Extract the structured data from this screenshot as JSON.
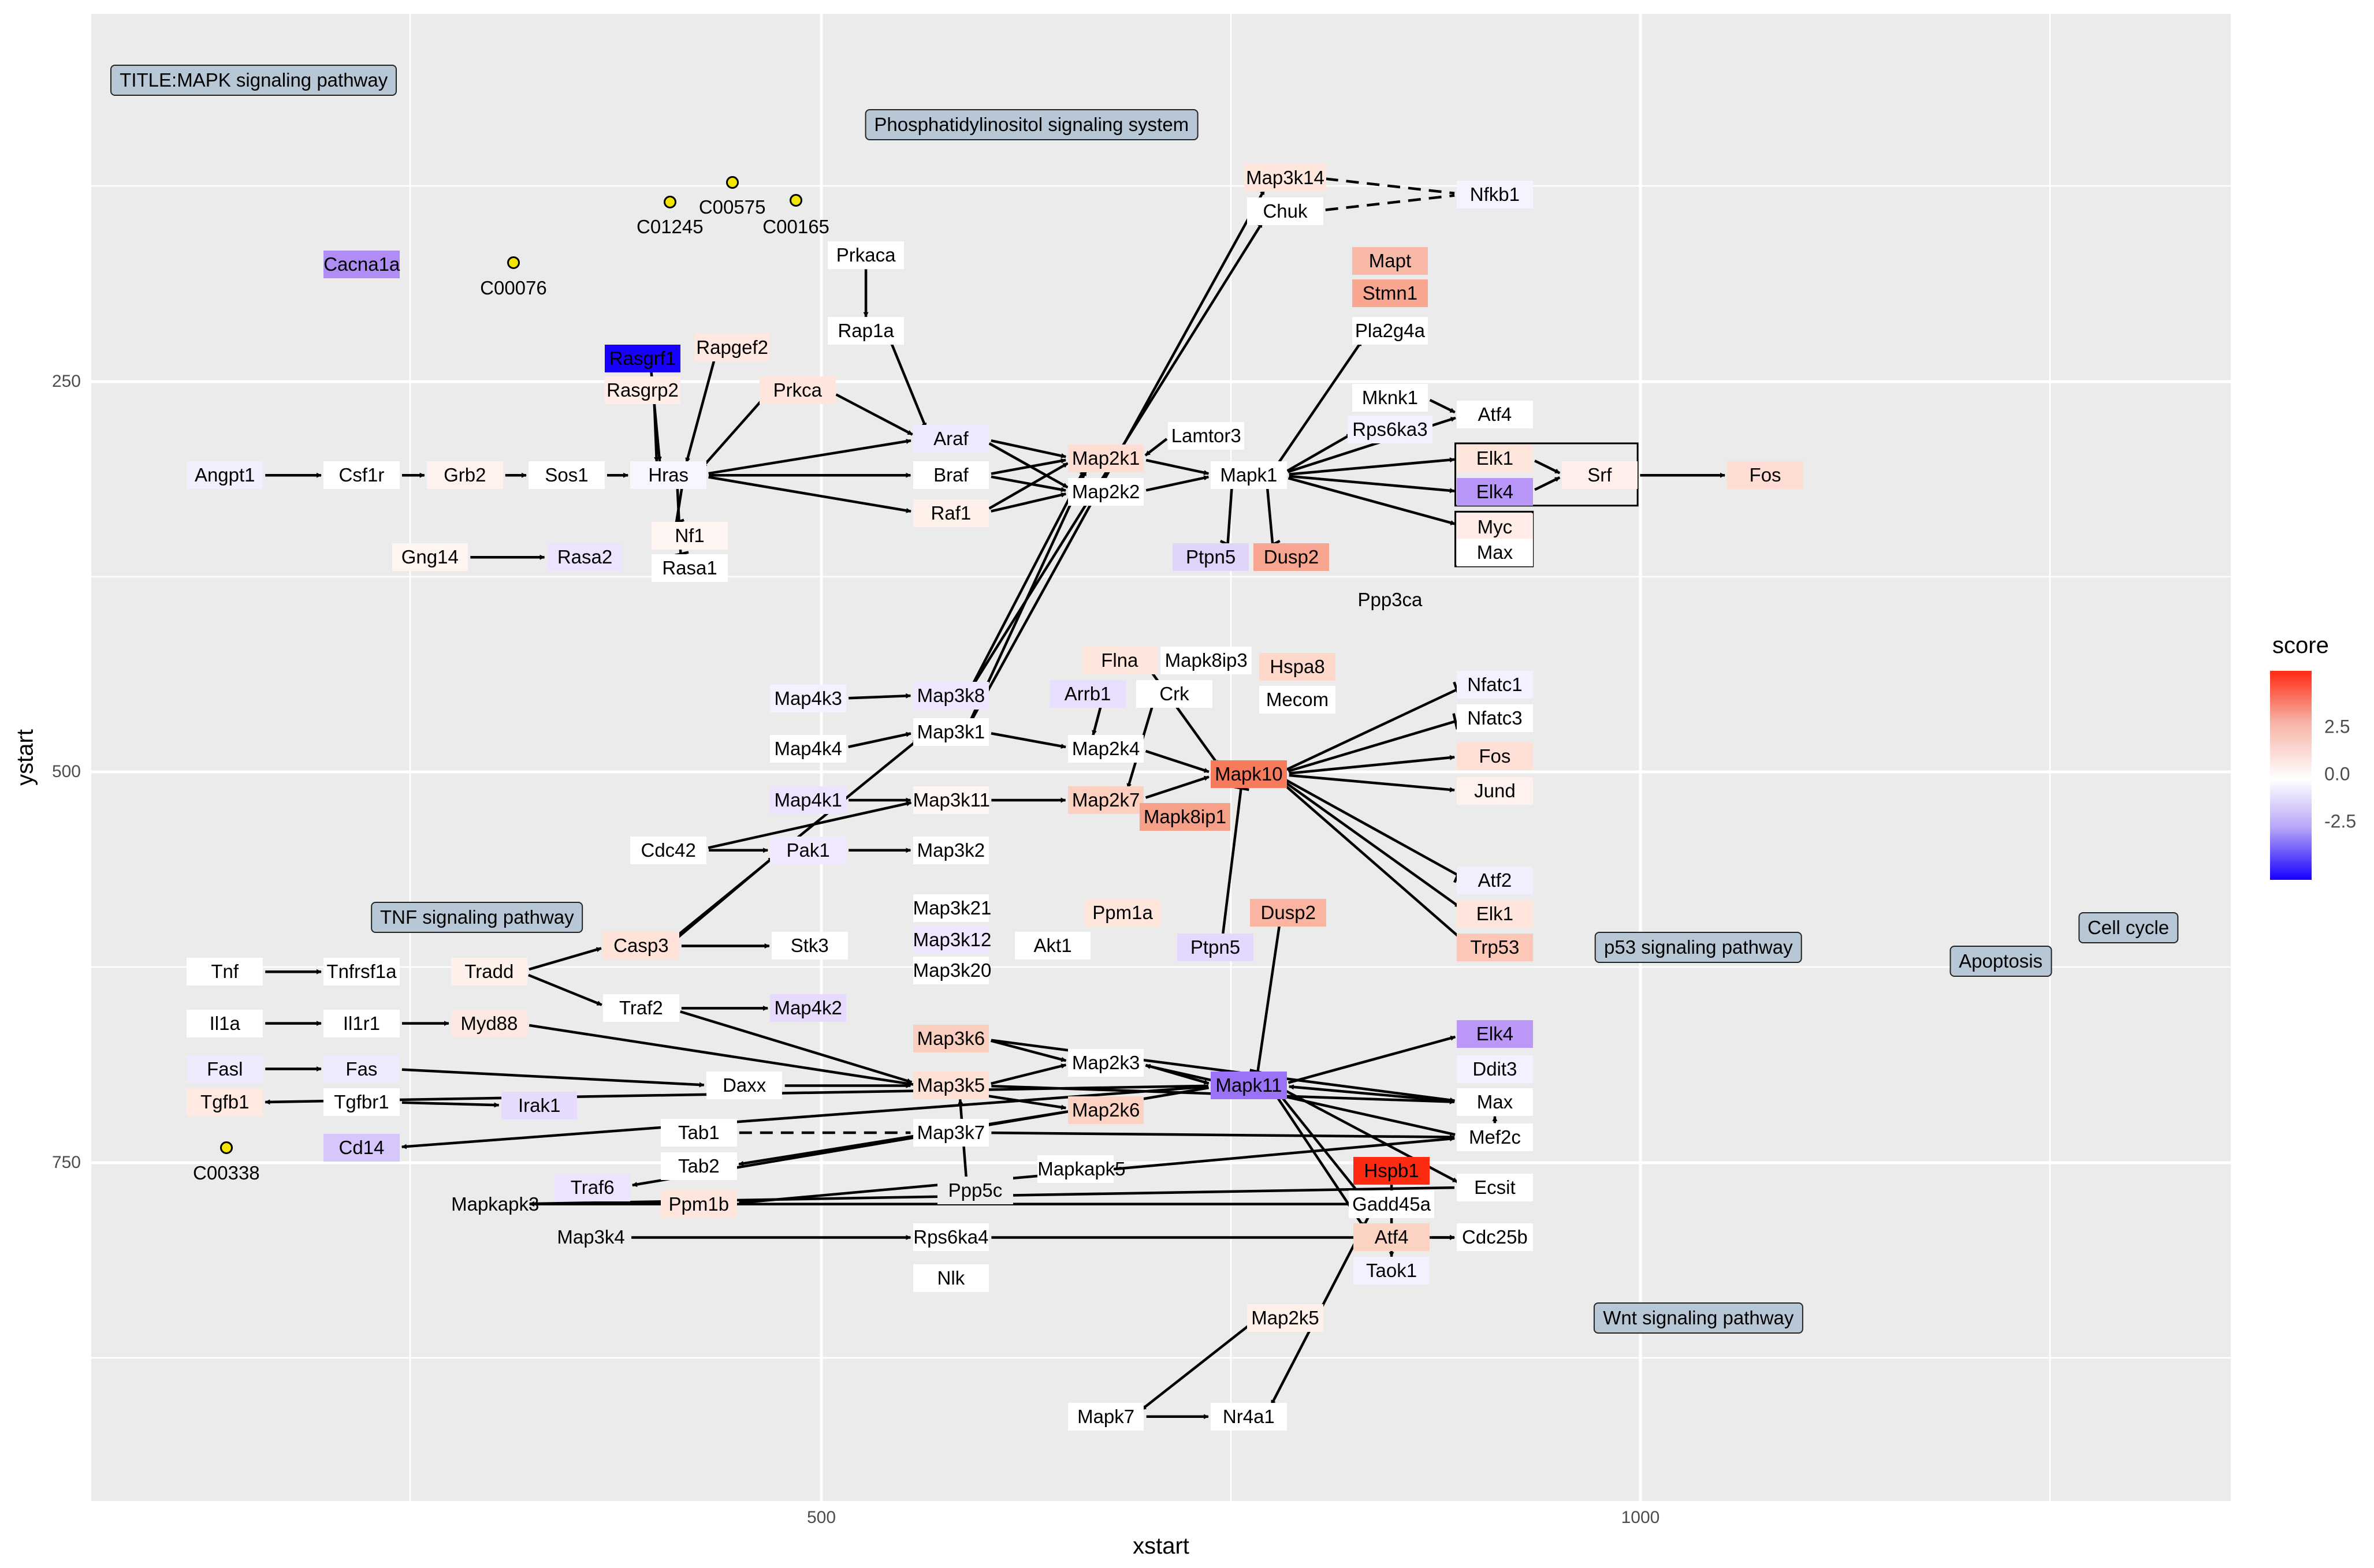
{
  "plot": {
    "xlabel": "xstart",
    "ylabel": "ystart",
    "x_ticks": [
      "500",
      "1000"
    ],
    "y_ticks": [
      "250",
      "500",
      "750"
    ]
  },
  "legend": {
    "title": "score",
    "ticks": [
      "2.5",
      "0.0",
      "-2.5"
    ]
  },
  "map_labels": [
    "TITLE:MAPK signaling pathway",
    "Phosphatidylinositol signaling system",
    "TNF signaling pathway",
    "p53 signaling pathway",
    "Apoptosis",
    "Cell cycle",
    "Wnt signaling pathway"
  ],
  "compounds": [
    "C00575",
    "C01245",
    "C00165",
    "C00076",
    "C00338"
  ],
  "genes": [
    "Angpt1",
    "Csf1r",
    "Grb2",
    "Sos1",
    "Hras",
    "Nf1",
    "Rasa1",
    "Gng14",
    "Rasa2",
    "Rasgrf1",
    "Rasgrp2",
    "Rapgef2",
    "Prkca",
    "Prkaca",
    "Rap1a",
    "Cacna1a",
    "Araf",
    "Braf",
    "Raf1",
    "Map2k1",
    "Map2k2",
    "Lamtor3",
    "Mapk1",
    "Ptpn5",
    "Dusp2",
    "Map3k14",
    "Chuk",
    "Nfkb1",
    "Mapt",
    "Stmn1",
    "Pla2g4a",
    "Mknk1",
    "Rps6ka3",
    "Atf4",
    "Elk1",
    "Elk4",
    "Srf",
    "Fos",
    "Myc",
    "Max",
    "Ppp3ca",
    "Flna",
    "Mapk8ip3",
    "Hspa8",
    "Arrb1",
    "Crk",
    "Mecom",
    "Map4k3",
    "Map3k8",
    "Map3k1",
    "Map4k4",
    "Map2k4",
    "Mapk10",
    "Map4k1",
    "Map3k11",
    "Map2k7",
    "Mapk8ip1",
    "Cdc42",
    "Pak1",
    "Map3k2",
    "Nfatc1",
    "Nfatc3",
    "Fos",
    "Jund",
    "Map3k21",
    "Map3k12",
    "Map3k20",
    "Akt1",
    "Ppm1a",
    "Dusp2",
    "Ptpn5",
    "Atf2",
    "Elk1",
    "Trp53",
    "Casp3",
    "Stk3",
    "Tnf",
    "Tnfrsf1a",
    "Tradd",
    "Traf2",
    "Map4k2",
    "Il1a",
    "Il1r1",
    "Myd88",
    "Map3k6",
    "Map2k3",
    "Mapk11",
    "Elk4",
    "Fasl",
    "Fas",
    "Daxx",
    "Map3k5",
    "Ddit3",
    "Tgfb1",
    "Tgfbr1",
    "Irak1",
    "Map2k6",
    "Max",
    "Cd14",
    "Tab1",
    "Map3k7",
    "Mef2c",
    "Traf6",
    "Tab2",
    "Ppm1b",
    "Ppp5c",
    "Mapkapk5",
    "Hspb1",
    "Ecsit",
    "Mapkapk3",
    "Gadd45a",
    "Map3k4",
    "Rps6ka4",
    "Atf4",
    "Cdc25b",
    "Taok1",
    "Nlk",
    "Map2k5",
    "Mapk7",
    "Nr4a1"
  ]
}
